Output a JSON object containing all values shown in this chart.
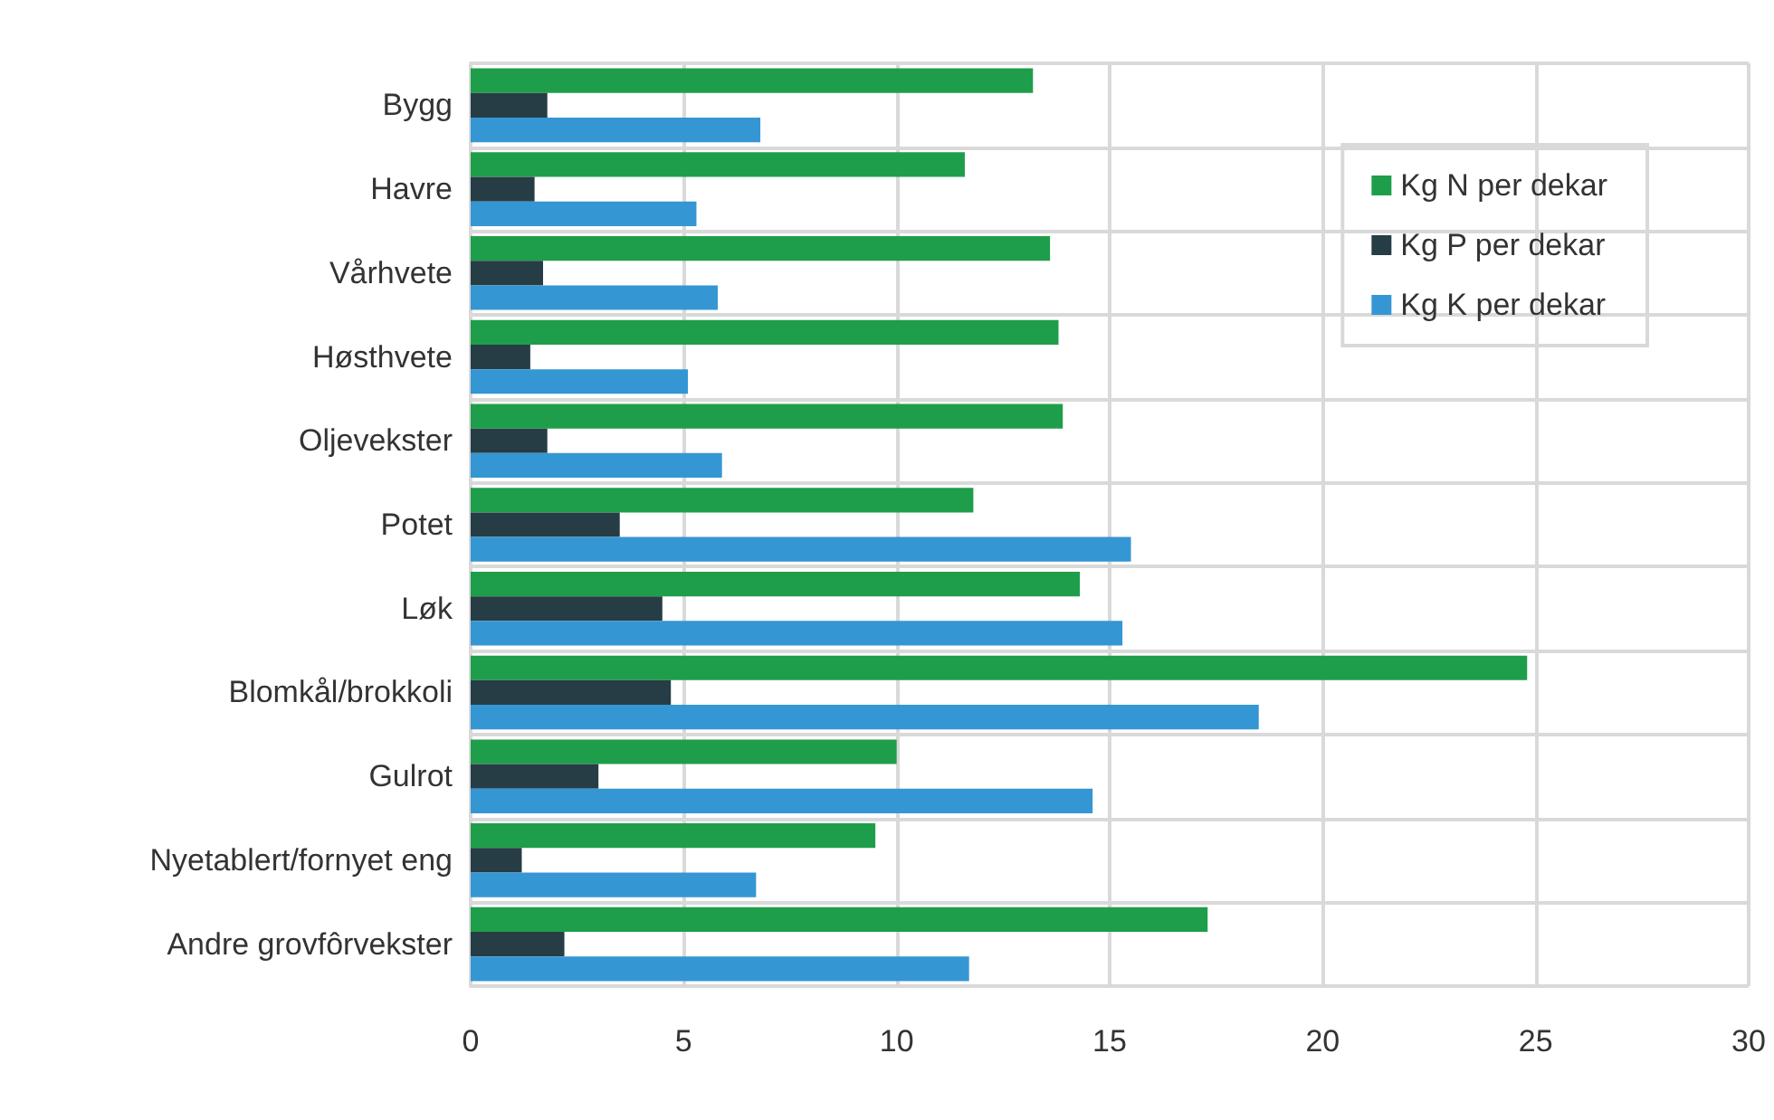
{
  "chart_data": {
    "type": "bar",
    "orientation": "horizontal",
    "categories": [
      "Bygg",
      "Havre",
      "Vårhvete",
      "Høsthvete",
      "Oljevekster",
      "Potet",
      "Løk",
      "Blomkål/brokkoli",
      "Gulrot",
      "Nyetablert/fornyet eng",
      "Andre grovfôrvekster"
    ],
    "series": [
      {
        "name": "Kg N per dekar",
        "color": "#1e9e4a",
        "values": [
          13.2,
          11.6,
          13.6,
          13.8,
          13.9,
          11.8,
          14.3,
          24.8,
          10.0,
          9.5,
          17.3
        ]
      },
      {
        "name": "Kg P per dekar",
        "color": "#263d45",
        "values": [
          1.8,
          1.5,
          1.7,
          1.4,
          1.8,
          3.5,
          4.5,
          4.7,
          3.0,
          1.2,
          2.2
        ]
      },
      {
        "name": "Kg K per dekar",
        "color": "#3596d4",
        "values": [
          6.8,
          5.3,
          5.8,
          5.1,
          5.9,
          15.5,
          15.3,
          18.5,
          14.6,
          6.7,
          11.7
        ]
      }
    ],
    "xlim": [
      0,
      30
    ],
    "xticks": [
      0,
      5,
      10,
      15,
      20,
      25,
      30
    ],
    "grid": true,
    "legend": "top right"
  }
}
